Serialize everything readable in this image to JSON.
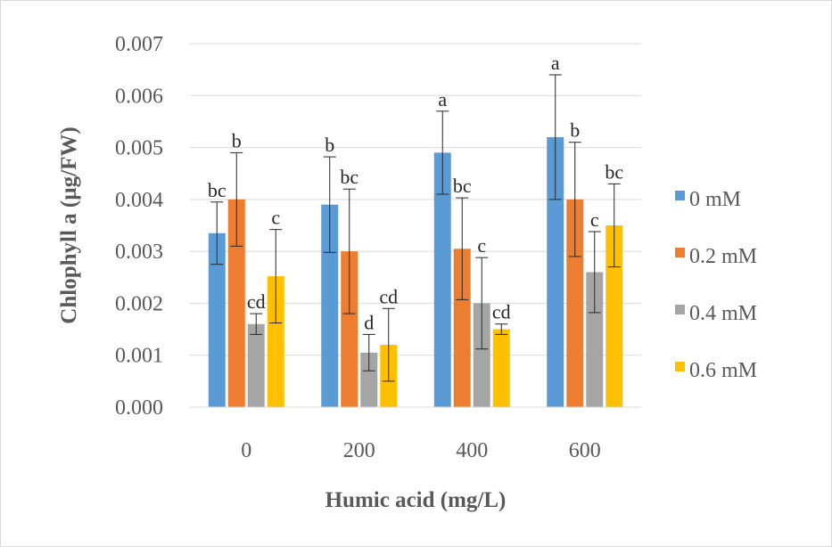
{
  "chart_data": {
    "type": "bar",
    "xlabel": "Humic acid (mg/L)",
    "ylabel": "Chlophyll a (µg/FW)",
    "ylim": [
      0,
      0.007
    ],
    "yticks": [
      "0.000",
      "0.001",
      "0.002",
      "0.003",
      "0.004",
      "0.005",
      "0.006",
      "0.007"
    ],
    "grid": true,
    "legend_position": "right",
    "categories": [
      "0",
      "200",
      "400",
      "600"
    ],
    "series": [
      {
        "name": "0 mM",
        "color": "#5B9BD5",
        "values": [
          0.00335,
          0.0039,
          0.0049,
          0.0052
        ],
        "errors": [
          0.0006,
          0.00092,
          0.0008,
          0.0012
        ],
        "labels": [
          "bc",
          "b",
          "a",
          "a"
        ]
      },
      {
        "name": "0.2 mM",
        "color": "#ED7D31",
        "values": [
          0.004,
          0.003,
          0.00305,
          0.004
        ],
        "errors": [
          0.0009,
          0.0012,
          0.00098,
          0.0011
        ],
        "labels": [
          "b",
          "bc",
          "bc",
          "b"
        ]
      },
      {
        "name": "0.4 mM",
        "color": "#A5A5A5",
        "values": [
          0.0016,
          0.00105,
          0.002,
          0.0026
        ],
        "errors": [
          0.0002,
          0.00035,
          0.00088,
          0.00078
        ],
        "labels": [
          "cd",
          "d",
          "c",
          "c"
        ]
      },
      {
        "name": "0.6 mM",
        "color": "#FFC000",
        "values": [
          0.00252,
          0.0012,
          0.0015,
          0.0035
        ],
        "errors": [
          0.0009,
          0.0007,
          0.0001,
          0.0008
        ],
        "labels": [
          "c",
          "cd",
          "cd",
          "bc"
        ]
      }
    ]
  }
}
